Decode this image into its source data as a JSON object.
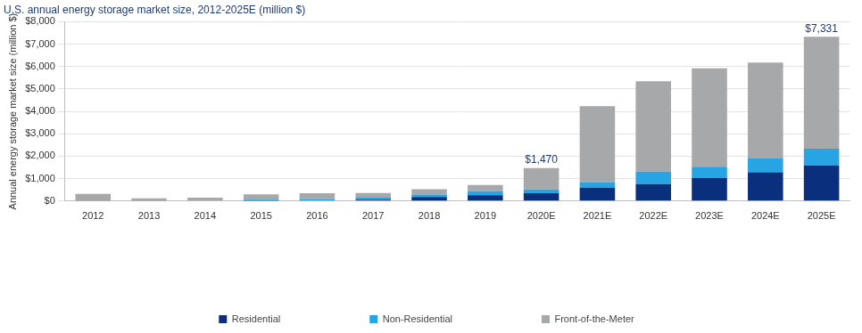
{
  "chart_data": {
    "type": "bar",
    "title": "U.S. annual energy storage market size, 2012-2025E (million $)",
    "y_label": "Annual energy storage market size (million $)",
    "categories": [
      "2012",
      "2013",
      "2014",
      "2015",
      "2016",
      "2017",
      "2018",
      "2019",
      "2020E",
      "2021E",
      "2022E",
      "2023E",
      "2024E",
      "2025E"
    ],
    "series": [
      {
        "name": "Residential",
        "color": "#0a2f7d",
        "values": [
          0,
          0,
          0,
          10,
          20,
          60,
          180,
          260,
          350,
          600,
          760,
          1030,
          1280,
          1580
        ]
      },
      {
        "name": "Non-Residential",
        "color": "#26a4e4",
        "values": [
          10,
          10,
          20,
          50,
          60,
          90,
          110,
          180,
          170,
          250,
          550,
          500,
          620,
          760
        ]
      },
      {
        "name": "Front-of-the-Meter",
        "color": "#a7a8aa",
        "values": [
          310,
          110,
          130,
          240,
          270,
          210,
          240,
          280,
          950,
          3380,
          4030,
          4390,
          4280,
          4991
        ]
      }
    ],
    "stacked": true,
    "grid": true,
    "legend": "bottom",
    "ylim": [
      0,
      8000
    ],
    "yticks": [
      {
        "value": 0,
        "label": "$0"
      },
      {
        "value": 1000,
        "label": "$1,000"
      },
      {
        "value": 2000,
        "label": "$2,000"
      },
      {
        "value": 3000,
        "label": "$3,000"
      },
      {
        "value": 4000,
        "label": "$4,000"
      },
      {
        "value": 5000,
        "label": "$5,000"
      },
      {
        "value": 6000,
        "label": "$6,000"
      },
      {
        "value": 7000,
        "label": "$7,000"
      },
      {
        "value": 8000,
        "label": "$8,000"
      }
    ],
    "annotations": [
      {
        "category": "2020E",
        "value": 1470,
        "label": "$1,470"
      },
      {
        "category": "2025E",
        "value": 7331,
        "label": "$7,331"
      }
    ]
  }
}
